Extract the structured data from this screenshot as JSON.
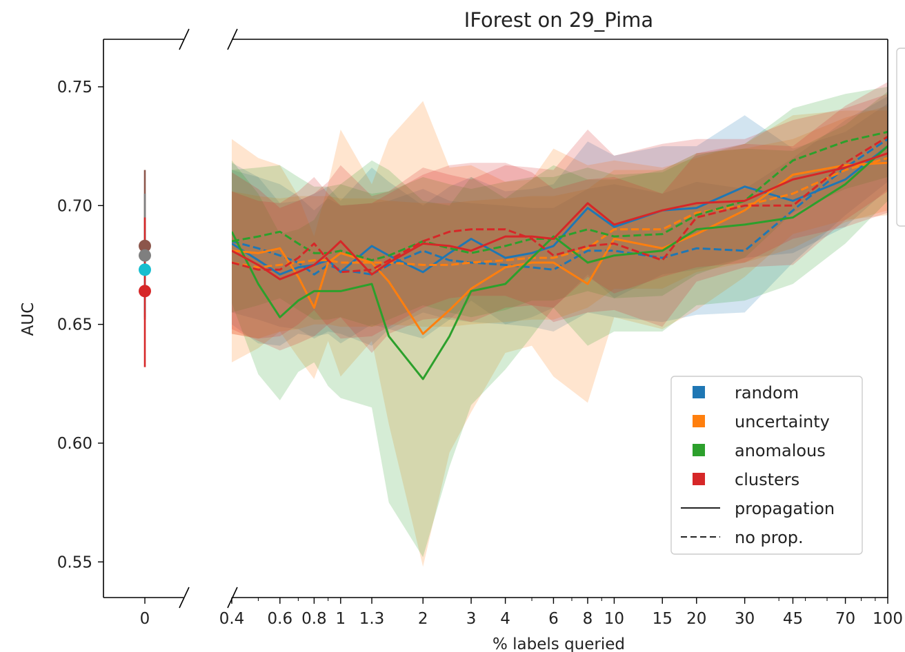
{
  "chart_data": {
    "type": "line",
    "title": "IForest on 29_Pima",
    "xlabel": "% labels queried",
    "ylabel": "AUC",
    "ylim": [
      0.535,
      0.77
    ],
    "xscale": "log",
    "xlim": [
      0.4,
      100
    ],
    "x_ticks": [
      {
        "value": 0.4,
        "label": "0.4"
      },
      {
        "value": 0.6,
        "label": "0.6"
      },
      {
        "value": 0.8,
        "label": "0.8"
      },
      {
        "value": 1,
        "label": "1"
      },
      {
        "value": 1.3,
        "label": "1.3"
      },
      {
        "value": 2,
        "label": "2"
      },
      {
        "value": 3,
        "label": "3"
      },
      {
        "value": 4,
        "label": "4"
      },
      {
        "value": 6,
        "label": "6"
      },
      {
        "value": 8,
        "label": "8"
      },
      {
        "value": 10,
        "label": "10"
      },
      {
        "value": 15,
        "label": "15"
      },
      {
        "value": 20,
        "label": "20"
      },
      {
        "value": 30,
        "label": "30"
      },
      {
        "value": 45,
        "label": "45"
      },
      {
        "value": 70,
        "label": "70"
      },
      {
        "value": 100,
        "label": "100"
      }
    ],
    "y_ticks": [
      {
        "value": 0.55,
        "label": "0.55"
      },
      {
        "value": 0.6,
        "label": "0.60"
      },
      {
        "value": 0.65,
        "label": "0.65"
      },
      {
        "value": 0.7,
        "label": "0.70"
      },
      {
        "value": 0.75,
        "label": "0.75"
      }
    ],
    "left_panel": {
      "x_tick_label": "0",
      "points": [
        {
          "color": "#8c564b",
          "y": 0.683,
          "low": 0.652,
          "high": 0.715
        },
        {
          "color": "#7f7f7f",
          "y": 0.679,
          "low": 0.653,
          "high": 0.705
        },
        {
          "color": "#17becf",
          "y": 0.673,
          "low": 0.655,
          "high": 0.69
        },
        {
          "color": "#d62728",
          "y": 0.664,
          "low": 0.632,
          "high": 0.695
        }
      ]
    },
    "x": [
      0.4,
      0.5,
      0.6,
      0.7,
      0.8,
      0.9,
      1,
      1.3,
      1.5,
      2,
      2.5,
      3,
      4,
      5,
      6,
      8,
      10,
      15,
      20,
      30,
      45,
      70,
      100
    ],
    "series": [
      {
        "name": "random",
        "color": "#1f77b4",
        "style": "solid",
        "values": [
          0.684,
          0.677,
          0.671,
          0.674,
          0.675,
          0.677,
          0.672,
          0.683,
          0.679,
          0.672,
          0.68,
          0.686,
          0.678,
          0.68,
          0.683,
          0.699,
          0.691,
          0.698,
          0.699,
          0.708,
          0.702,
          0.711,
          0.725
        ],
        "spread": [
          0.034,
          0.035,
          0.03,
          0.028,
          0.03,
          0.031,
          0.03,
          0.033,
          0.031,
          0.028,
          0.028,
          0.026,
          0.028,
          0.027,
          0.026,
          0.028,
          0.03,
          0.027,
          0.026,
          0.03,
          0.022,
          0.02,
          0.018
        ]
      },
      {
        "name": "random",
        "color": "#1f77b4",
        "style": "dashed",
        "values": [
          0.685,
          0.682,
          0.679,
          0.676,
          0.671,
          0.675,
          0.673,
          0.671,
          0.675,
          0.681,
          0.677,
          0.676,
          0.675,
          0.674,
          0.673,
          0.681,
          0.681,
          0.678,
          0.682,
          0.681,
          0.698,
          0.716,
          0.728
        ],
        "spread": [
          0.03,
          0.03,
          0.03,
          0.028,
          0.027,
          0.028,
          0.027,
          0.03,
          0.027,
          0.026,
          0.025,
          0.025,
          0.025,
          0.025,
          0.026,
          0.026,
          0.028,
          0.027,
          0.028,
          0.026,
          0.022,
          0.02,
          0.018
        ]
      },
      {
        "name": "uncertainty",
        "color": "#ff7f0e",
        "style": "solid",
        "values": [
          0.681,
          0.68,
          0.682,
          0.67,
          0.657,
          0.676,
          0.68,
          0.676,
          0.668,
          0.646,
          0.656,
          0.665,
          0.674,
          0.676,
          0.676,
          0.667,
          0.686,
          0.682,
          0.688,
          0.698,
          0.713,
          0.717,
          0.718
        ],
        "spread": [
          0.047,
          0.04,
          0.035,
          0.034,
          0.03,
          0.033,
          0.052,
          0.033,
          0.06,
          0.098,
          0.06,
          0.052,
          0.036,
          0.035,
          0.048,
          0.05,
          0.033,
          0.034,
          0.032,
          0.028,
          0.025,
          0.023,
          0.022
        ]
      },
      {
        "name": "uncertainty",
        "color": "#ff7f0e",
        "style": "dashed",
        "values": [
          0.676,
          0.674,
          0.675,
          0.676,
          0.677,
          0.677,
          0.676,
          0.676,
          0.676,
          0.675,
          0.675,
          0.676,
          0.677,
          0.678,
          0.678,
          0.682,
          0.69,
          0.69,
          0.697,
          0.7,
          0.705,
          0.715,
          0.72
        ],
        "spread": [
          0.03,
          0.03,
          0.028,
          0.028,
          0.027,
          0.027,
          0.027,
          0.027,
          0.026,
          0.026,
          0.026,
          0.026,
          0.026,
          0.026,
          0.026,
          0.025,
          0.025,
          0.025,
          0.025,
          0.024,
          0.023,
          0.022,
          0.022
        ]
      },
      {
        "name": "anomalous",
        "color": "#2ca02c",
        "style": "solid",
        "values": [
          0.689,
          0.667,
          0.653,
          0.66,
          0.664,
          0.664,
          0.664,
          0.667,
          0.645,
          0.627,
          0.645,
          0.664,
          0.667,
          0.678,
          0.687,
          0.676,
          0.679,
          0.681,
          0.69,
          0.692,
          0.695,
          0.709,
          0.725
        ],
        "spread": [
          0.03,
          0.038,
          0.035,
          0.03,
          0.03,
          0.04,
          0.045,
          0.052,
          0.07,
          0.075,
          0.055,
          0.048,
          0.036,
          0.033,
          0.03,
          0.035,
          0.032,
          0.034,
          0.032,
          0.032,
          0.028,
          0.025,
          0.023
        ]
      },
      {
        "name": "anomalous",
        "color": "#2ca02c",
        "style": "dashed",
        "values": [
          0.685,
          0.687,
          0.689,
          0.684,
          0.68,
          0.68,
          0.681,
          0.677,
          0.679,
          0.685,
          0.682,
          0.68,
          0.683,
          0.686,
          0.686,
          0.69,
          0.687,
          0.688,
          0.696,
          0.702,
          0.719,
          0.727,
          0.731
        ],
        "spread": [
          0.03,
          0.029,
          0.028,
          0.028,
          0.028,
          0.028,
          0.028,
          0.028,
          0.027,
          0.027,
          0.027,
          0.027,
          0.027,
          0.026,
          0.026,
          0.026,
          0.026,
          0.026,
          0.025,
          0.024,
          0.022,
          0.02,
          0.019
        ]
      },
      {
        "name": "clusters",
        "color": "#d62728",
        "style": "solid",
        "values": [
          0.681,
          0.675,
          0.669,
          0.672,
          0.675,
          0.68,
          0.685,
          0.671,
          0.676,
          0.684,
          0.683,
          0.681,
          0.687,
          0.687,
          0.686,
          0.701,
          0.692,
          0.698,
          0.701,
          0.702,
          0.711,
          0.716,
          0.722
        ],
        "spread": [
          0.033,
          0.032,
          0.03,
          0.03,
          0.03,
          0.03,
          0.032,
          0.033,
          0.03,
          0.032,
          0.03,
          0.03,
          0.03,
          0.029,
          0.029,
          0.031,
          0.029,
          0.028,
          0.027,
          0.026,
          0.025,
          0.025,
          0.025
        ]
      },
      {
        "name": "clusters",
        "color": "#d62728",
        "style": "dashed",
        "values": [
          0.676,
          0.673,
          0.673,
          0.678,
          0.684,
          0.677,
          0.672,
          0.673,
          0.677,
          0.685,
          0.689,
          0.69,
          0.69,
          0.686,
          0.679,
          0.683,
          0.684,
          0.677,
          0.695,
          0.7,
          0.7,
          0.718,
          0.729
        ],
        "spread": [
          0.03,
          0.029,
          0.028,
          0.028,
          0.028,
          0.028,
          0.028,
          0.028,
          0.028,
          0.028,
          0.028,
          0.028,
          0.028,
          0.028,
          0.028,
          0.028,
          0.028,
          0.028,
          0.027,
          0.026,
          0.025,
          0.024,
          0.023
        ]
      }
    ],
    "legend": {
      "placement": "lower right",
      "items": [
        {
          "label": "random",
          "kind": "patch",
          "color": "#1f77b4"
        },
        {
          "label": "uncertainty",
          "kind": "patch",
          "color": "#ff7f0e"
        },
        {
          "label": "anomalous",
          "kind": "patch",
          "color": "#2ca02c"
        },
        {
          "label": "clusters",
          "kind": "patch",
          "color": "#d62728"
        },
        {
          "label": "propagation",
          "kind": "solid",
          "color": "#222222"
        },
        {
          "label": "no prop.",
          "kind": "dashed",
          "color": "#222222"
        }
      ]
    }
  }
}
